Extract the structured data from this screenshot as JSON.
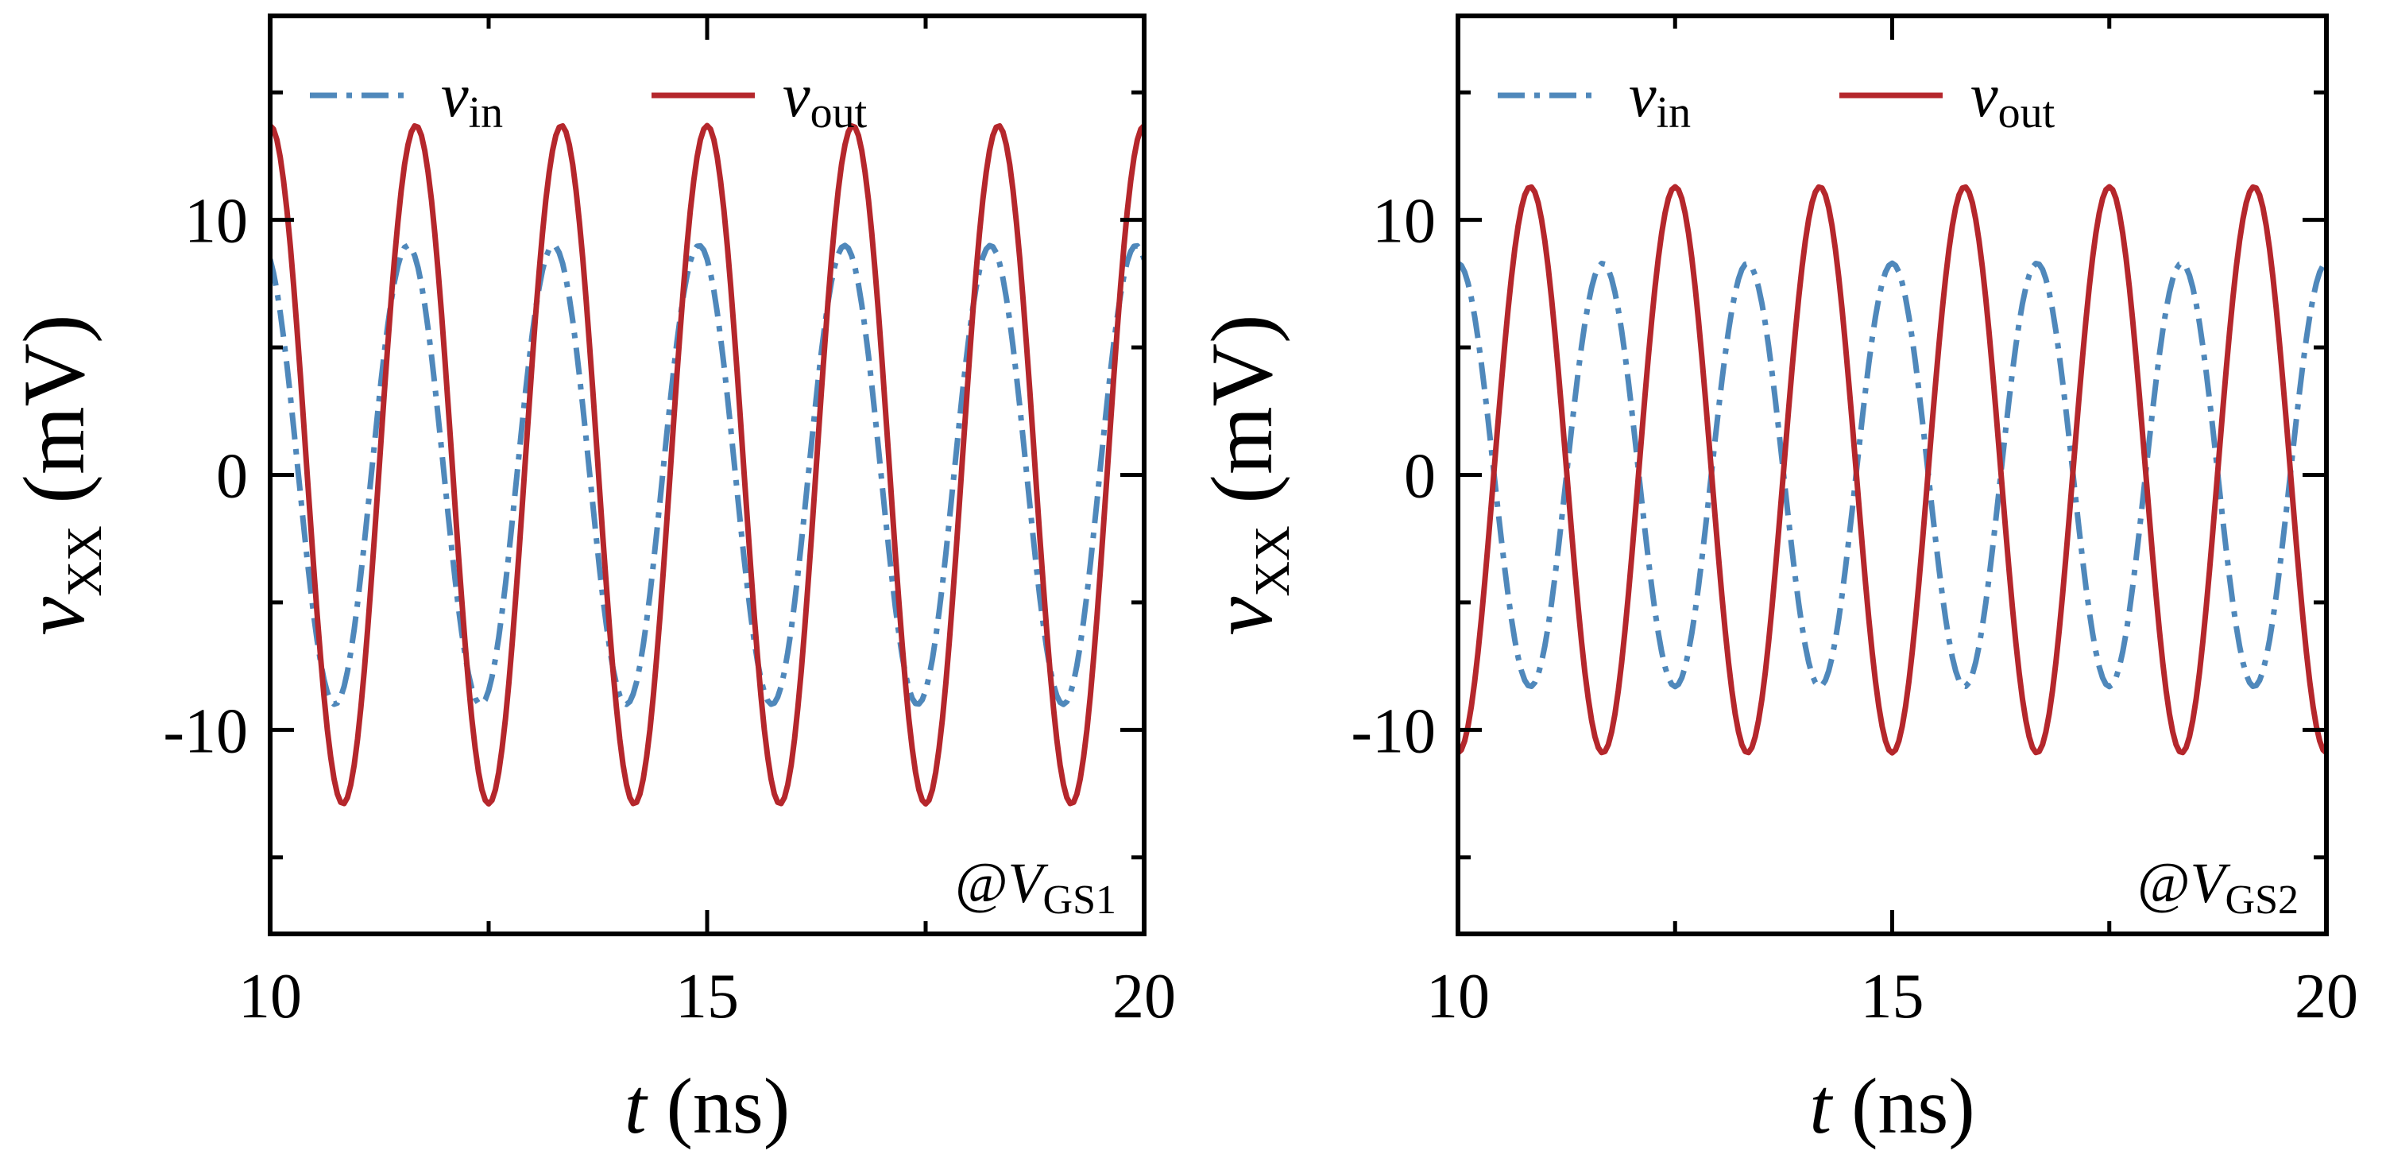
{
  "chart_data": [
    {
      "type": "line",
      "panel": "left",
      "xlabel": "t",
      "xlabel_unit": "(ns)",
      "ylabel": "v",
      "ylabel_sub": "XX",
      "ylabel_unit": "(mV)",
      "xlim": [
        10,
        20
      ],
      "ylim": [
        -18,
        18
      ],
      "xticks": [
        10,
        15,
        20
      ],
      "xtick_labels": [
        "10",
        "15",
        "20"
      ],
      "yticks": [
        -10,
        0,
        10
      ],
      "ytick_labels": [
        "-10",
        "0",
        "10"
      ],
      "minor_yticks": [
        -15,
        -5,
        5,
        15
      ],
      "minor_xticks": [
        12.5,
        17.5
      ],
      "annotation": {
        "prefix": "@",
        "main": "V",
        "sub": "GS1"
      },
      "legend_position": "top",
      "series": [
        {
          "name": "v",
          "name_sub": "in",
          "style": "dash-dot",
          "color": "#4f88bb",
          "amplitude": 9.0,
          "frequency_ghz": 0.6,
          "phase_deg": 110,
          "offset": 0
        },
        {
          "name": "v",
          "name_sub": "out",
          "style": "solid",
          "color": "#b5272c",
          "amplitude": 13.3,
          "frequency_ghz": 0.6,
          "phase_deg": 90,
          "offset": 0.4
        }
      ]
    },
    {
      "type": "line",
      "panel": "right",
      "xlabel": "t",
      "xlabel_unit": "(ns)",
      "ylabel": "v",
      "ylabel_sub": "XX",
      "ylabel_unit": "(mV)",
      "xlim": [
        10,
        20
      ],
      "ylim": [
        -18,
        18
      ],
      "xticks": [
        10,
        15,
        20
      ],
      "xtick_labels": [
        "10",
        "15",
        "20"
      ],
      "yticks": [
        -10,
        0,
        10
      ],
      "ytick_labels": [
        "-10",
        "0",
        "10"
      ],
      "minor_yticks": [
        -15,
        -5,
        5,
        15
      ],
      "minor_xticks": [
        12.5,
        17.5
      ],
      "annotation": {
        "prefix": "@",
        "main": "V",
        "sub": "GS2"
      },
      "legend_position": "top",
      "series": [
        {
          "name": "v",
          "name_sub": "in",
          "style": "dash-dot",
          "color": "#4f88bb",
          "amplitude": 8.3,
          "frequency_ghz": 0.6,
          "phase_deg": 90,
          "offset": 0
        },
        {
          "name": "v",
          "name_sub": "out",
          "style": "solid",
          "color": "#b5272c",
          "amplitude": 11.1,
          "frequency_ghz": 0.6,
          "phase_deg": -90,
          "offset": 0.2
        }
      ]
    }
  ]
}
